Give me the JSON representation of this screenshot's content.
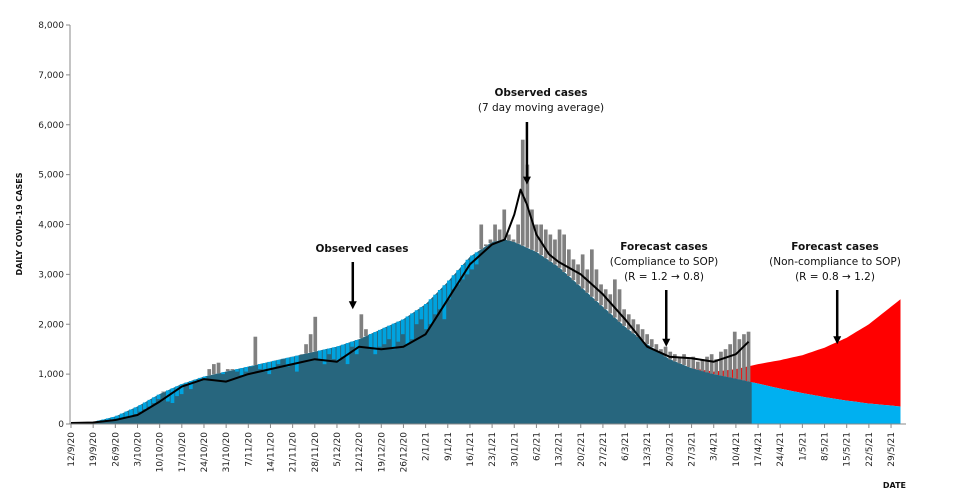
{
  "chart_data": {
    "type": "line",
    "title": "",
    "xlabel": "DATE",
    "ylabel": "DAILY COVID-19 CASES",
    "ylim": [
      0,
      8000
    ],
    "grid": false,
    "y_ticks": [
      "0",
      "1,000",
      "2,000",
      "3,000",
      "4,000",
      "5,000",
      "6,000",
      "7,000",
      "8,000"
    ],
    "x_ticks": [
      "12/9/20",
      "19/9/20",
      "26/9/20",
      "3/10/20",
      "10/10/20",
      "17/10/20",
      "24/10/20",
      "31/10/20",
      "7/11/20",
      "14/11/20",
      "21/11/20",
      "28/11/20",
      "5/12/20",
      "12/12/20",
      "19/12/20",
      "26/12/20",
      "2/1/21",
      "9/1/21",
      "16/1/21",
      "23/1/21",
      "30/1/21",
      "6/2/21",
      "13/2/21",
      "20/2/21",
      "27/2/21",
      "6/3/21",
      "13/3/21",
      "20/3/21",
      "27/3/21",
      "3/4/21",
      "10/4/21",
      "17/4/21",
      "24/4/21",
      "1/5/21",
      "8/5/21",
      "15/5/21",
      "22/5/21",
      "29/5/21"
    ],
    "series": [
      {
        "name": "Observed cases",
        "kind": "daily bars",
        "color": "#808080",
        "x_range": [
          "12/9/20",
          "14/4/21"
        ],
        "values": [
          15,
          20,
          18,
          25,
          30,
          40,
          35,
          45,
          55,
          70,
          90,
          110,
          130,
          160,
          200,
          250,
          300,
          350,
          420,
          500,
          650,
          450,
          420,
          560,
          600,
          800,
          700,
          850,
          860,
          900,
          1100,
          1200,
          1230,
          1000,
          1100,
          1100,
          1050,
          980,
          1050,
          1150,
          1750,
          1100,
          1050,
          1000,
          1100,
          1200,
          1300,
          1150,
          1200,
          1050,
          1400,
          1600,
          1800,
          2150,
          1300,
          1200,
          1400,
          1300,
          1250,
          1350,
          1200,
          1550,
          1400,
          2200,
          1900,
          1500,
          1400,
          1550,
          1600,
          1700,
          1500,
          1650,
          1800,
          1600,
          1700,
          2000,
          2100,
          1900,
          2000,
          2200,
          2300,
          2100,
          2500,
          2700,
          2800,
          2900,
          3000,
          3100,
          3200,
          4000,
          3600,
          3700,
          4000,
          3900,
          4300,
          3800,
          3700,
          4000,
          5700,
          5200,
          4300,
          4000,
          4000,
          3900,
          3800,
          3700,
          3900,
          3800,
          3500,
          3300,
          3200,
          3400,
          3100,
          3500,
          3100,
          2800,
          2700,
          2600,
          2900,
          2700,
          2300,
          2200,
          2100,
          2000,
          1900,
          1800,
          1700,
          1600,
          1500,
          1550,
          1450,
          1400,
          1350,
          1400,
          1300,
          1350,
          1250,
          1300,
          1350,
          1400,
          1300,
          1450,
          1500,
          1600,
          1850,
          1700,
          1800,
          1850
        ]
      },
      {
        "name": "Observed cases (7 day moving average)",
        "kind": "line",
        "color": "#000000",
        "x": [
          "12/9/20",
          "19/9/20",
          "26/9/20",
          "3/10/20",
          "10/10/20",
          "17/10/20",
          "24/10/20",
          "31/10/20",
          "7/11/20",
          "14/11/20",
          "21/11/20",
          "28/11/20",
          "5/12/20",
          "12/12/20",
          "19/12/20",
          "26/12/20",
          "2/1/21",
          "9/1/21",
          "16/1/21",
          "23/1/21",
          "27/1/21",
          "30/1/21",
          "1/2/21",
          "3/2/21",
          "6/2/21",
          "10/2/21",
          "13/2/21",
          "20/2/21",
          "27/2/21",
          "6/3/21",
          "13/3/21",
          "20/3/21",
          "27/3/21",
          "3/4/21",
          "10/4/21",
          "14/4/21"
        ],
        "values": [
          20,
          30,
          80,
          180,
          450,
          750,
          900,
          850,
          1000,
          1100,
          1200,
          1300,
          1250,
          1550,
          1500,
          1550,
          1800,
          2500,
          3200,
          3600,
          3700,
          4200,
          4700,
          4400,
          3800,
          3400,
          3250,
          3000,
          2600,
          2100,
          1550,
          1350,
          1320,
          1250,
          1400,
          1650
        ]
      },
      {
        "name": "Forecast cases (Compliance to SOP) (R = 1.2 → 0.8)",
        "kind": "area",
        "color": "#00B0F0",
        "x": [
          "12/9/20",
          "19/9/20",
          "26/9/20",
          "3/10/20",
          "10/10/20",
          "17/10/20",
          "24/10/20",
          "31/10/20",
          "7/11/20",
          "14/11/20",
          "21/11/20",
          "28/11/20",
          "5/12/20",
          "12/12/20",
          "19/12/20",
          "26/12/20",
          "2/1/21",
          "9/1/21",
          "16/1/21",
          "23/1/21",
          "27/1/21",
          "30/1/21",
          "6/2/21",
          "13/2/21",
          "20/2/21",
          "27/2/21",
          "6/3/21",
          "13/3/21",
          "20/3/21",
          "27/3/21",
          "3/4/21",
          "10/4/21",
          "17/4/21",
          "24/4/21",
          "1/5/21",
          "8/5/21",
          "15/5/21",
          "22/5/21",
          "29/5/21",
          "1/6/21"
        ],
        "values": [
          10,
          40,
          150,
          350,
          600,
          800,
          950,
          1050,
          1150,
          1250,
          1350,
          1450,
          1550,
          1700,
          1900,
          2100,
          2400,
          2850,
          3350,
          3650,
          3700,
          3650,
          3450,
          3150,
          2750,
          2350,
          1950,
          1600,
          1300,
          1120,
          1000,
          910,
          810,
          710,
          620,
          540,
          470,
          410,
          370,
          350
        ]
      },
      {
        "name": "Forecast cases (Non-compliance to SOP) (R = 0.8 → 1.2)",
        "kind": "area",
        "color": "#FF0000",
        "x": [
          "27/3/21",
          "3/4/21",
          "10/4/21",
          "17/4/21",
          "24/4/21",
          "1/5/21",
          "8/5/21",
          "15/5/21",
          "22/5/21",
          "29/5/21",
          "1/6/21"
        ],
        "values": [
          1120,
          1050,
          1100,
          1200,
          1280,
          1380,
          1530,
          1730,
          2000,
          2350,
          2500
        ]
      }
    ],
    "annotations": [
      {
        "lines": [
          "Observed cases",
          "(7 day moving average)"
        ],
        "bold": [
          true,
          false
        ]
      },
      {
        "lines": [
          "Observed cases"
        ],
        "bold": [
          true
        ]
      },
      {
        "lines": [
          "Forecast cases",
          "(Compliance to SOP)",
          "(R = 1.2 → 0.8)"
        ],
        "bold": [
          true,
          false,
          false
        ]
      },
      {
        "lines": [
          "Forecast cases",
          "(Non-compliance to SOP)",
          "(R = 0.8 → 1.2)"
        ],
        "bold": [
          true,
          false,
          false
        ]
      }
    ],
    "annotation_points": [
      {
        "date": "3/2/21",
        "value": 4800
      },
      {
        "date": "10/12/20",
        "value": 2300
      },
      {
        "date": "19/3/21",
        "value": 1550
      },
      {
        "date": "12/5/21",
        "value": 1600
      }
    ],
    "colors": {
      "observed_past_shade": "#2A5F74",
      "observed_bars": "#808080",
      "blue_bars": "#00A3DF",
      "axis": "#888888"
    }
  }
}
